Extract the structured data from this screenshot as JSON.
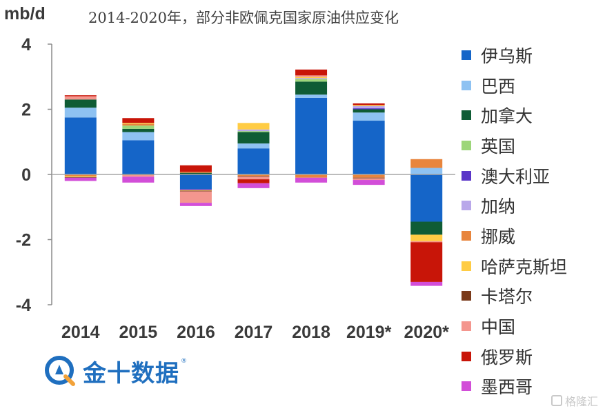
{
  "chart_data": {
    "type": "bar",
    "stacked": true,
    "title": "2014-2020年，部分非欧佩克国家原油供应变化",
    "ylabel": "mb/d",
    "xlabel": "",
    "ylim": [
      -4,
      4
    ],
    "yticks": [
      "4",
      "2",
      "0",
      "-2",
      "-4"
    ],
    "ytick_values": [
      4,
      2,
      0,
      -2,
      -4
    ],
    "grid": false,
    "legend_position": "right",
    "categories": [
      "2014",
      "2015",
      "2016",
      "2017",
      "2018",
      "2019*",
      "2020*"
    ],
    "series": [
      {
        "name": "伊乌斯",
        "color": "#1565c8",
        "values": [
          1.75,
          1.05,
          -0.45,
          0.8,
          2.35,
          1.65,
          -1.45
        ]
      },
      {
        "name": "巴西",
        "color": "#8ec2f2",
        "values": [
          0.3,
          0.25,
          0.0,
          0.15,
          0.1,
          0.25,
          0.2
        ]
      },
      {
        "name": "加拿大",
        "color": "#0f5c35",
        "values": [
          0.25,
          0.1,
          0.05,
          0.35,
          0.4,
          0.1,
          -0.4
        ]
      },
      {
        "name": "英国",
        "color": "#9dd67a",
        "values": [
          0.0,
          0.1,
          0.0,
          0.03,
          0.08,
          0.0,
          0.0
        ]
      },
      {
        "name": "澳大利亚",
        "color": "#5a35c8",
        "values": [
          0.0,
          0.0,
          -0.03,
          0.0,
          0.0,
          0.03,
          0.0
        ]
      },
      {
        "name": "加纳",
        "color": "#b9a8ea",
        "values": [
          0.0,
          0.0,
          0.0,
          0.05,
          0.03,
          0.07,
          0.0
        ]
      },
      {
        "name": "挪威",
        "color": "#e8853d",
        "values": [
          -0.05,
          0.05,
          0.03,
          -0.05,
          -0.1,
          -0.1,
          0.27
        ]
      },
      {
        "name": "哈萨克斯坦",
        "color": "#ffcc44",
        "values": [
          -0.03,
          0.03,
          -0.02,
          0.2,
          0.03,
          0.03,
          -0.2
        ]
      },
      {
        "name": "卡塔尔",
        "color": "#7a3a1a",
        "values": [
          -0.02,
          -0.02,
          -0.02,
          -0.02,
          0.0,
          -0.02,
          0.0
        ]
      },
      {
        "name": "中国",
        "color": "#f4968e",
        "values": [
          0.1,
          -0.05,
          -0.35,
          -0.08,
          0.05,
          -0.05,
          -0.03
        ]
      },
      {
        "name": "俄罗斯",
        "color": "#c81508",
        "values": [
          0.03,
          0.15,
          0.2,
          -0.12,
          0.18,
          0.05,
          -1.22
        ]
      },
      {
        "name": "墨西哥",
        "color": "#d24ed8",
        "values": [
          -0.1,
          -0.18,
          -0.1,
          -0.15,
          -0.15,
          -0.15,
          -0.12
        ]
      }
    ]
  },
  "branding": {
    "logo_text": "金十数据",
    "logo_mark": "®",
    "watermark": "格隆汇"
  }
}
